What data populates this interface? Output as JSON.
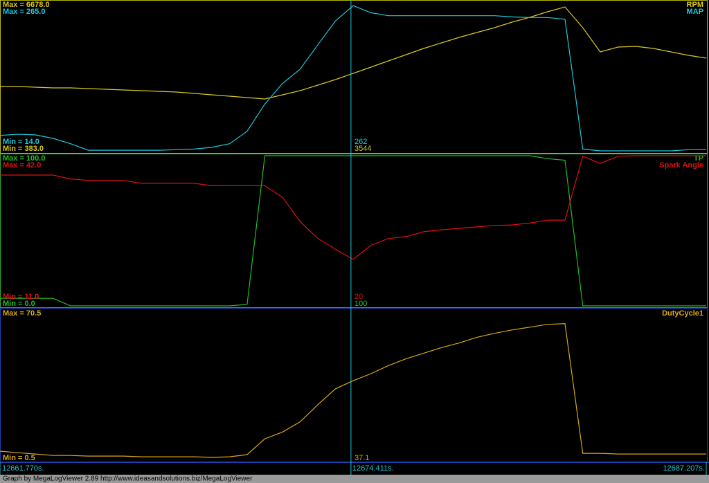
{
  "chart_data": [
    {
      "type": "line",
      "xlim": [
        12661.77,
        12687.207
      ],
      "x": [
        12661.77,
        12662.41,
        12663.04,
        12663.68,
        12664.31,
        12664.95,
        12665.59,
        12666.22,
        12666.86,
        12667.49,
        12668.13,
        12668.77,
        12669.4,
        12670.04,
        12670.67,
        12671.31,
        12671.95,
        12672.58,
        12673.22,
        12673.85,
        12674.49,
        12675.13,
        12675.76,
        12676.4,
        12677.03,
        12677.67,
        12678.31,
        12678.94,
        12679.58,
        12680.21,
        12680.85,
        12681.49,
        12682.12,
        12682.76,
        12683.39,
        12684.03,
        12684.67,
        12685.3,
        12685.94,
        12686.57,
        12687.21
      ],
      "series": [
        {
          "name": "RPM",
          "color": "#d8c820",
          "ylim": [
            383,
            6678
          ],
          "max_label": "Max = 6678.0",
          "min_label": "Min = 383.0",
          "cursor_value": 3544,
          "values": [
            3106,
            3106,
            3077,
            3047,
            3047,
            3018,
            2989,
            2960,
            2930,
            2901,
            2872,
            2813,
            2755,
            2696,
            2638,
            2579,
            2755,
            2930,
            3165,
            3399,
            3662,
            3926,
            4189,
            4453,
            4716,
            4951,
            5185,
            5390,
            5595,
            5829,
            6034,
            6268,
            6473,
            5595,
            4570,
            4775,
            4804,
            4716,
            4570,
            4424,
            4306
          ]
        },
        {
          "name": "MAP",
          "color": "#20c8dc",
          "ylim": [
            14,
            265
          ],
          "max_label": "Max = 265.0",
          "min_label": "Min = 14.0",
          "cursor_value": 262,
          "values": [
            40,
            42,
            41,
            35,
            26,
            15,
            15,
            15,
            15,
            15,
            16,
            17,
            20,
            26,
            47,
            93,
            128,
            152,
            193,
            233,
            259,
            247,
            242,
            242,
            242,
            242,
            242,
            242,
            242,
            240,
            239,
            239,
            236,
            17,
            14,
            14,
            14,
            14,
            14,
            16,
            16
          ]
        }
      ]
    },
    {
      "type": "line",
      "xlim": [
        12661.77,
        12687.207
      ],
      "x": [
        12661.77,
        12662.41,
        12663.04,
        12663.68,
        12664.31,
        12664.95,
        12665.59,
        12666.22,
        12666.86,
        12667.49,
        12668.13,
        12668.77,
        12669.4,
        12670.04,
        12670.67,
        12671.31,
        12671.95,
        12672.58,
        12673.22,
        12673.85,
        12674.49,
        12675.13,
        12675.76,
        12676.4,
        12677.03,
        12677.67,
        12678.31,
        12678.94,
        12679.58,
        12680.21,
        12680.85,
        12681.49,
        12682.12,
        12682.76,
        12683.39,
        12684.03,
        12684.67,
        12685.3,
        12685.94,
        12686.57,
        12687.21
      ],
      "series": [
        {
          "name": "TP",
          "color": "#20c020",
          "ylim": [
            0,
            100
          ],
          "max_label": "Max = 100.0",
          "min_label": "Min = 0.0",
          "cursor_value": 100,
          "values": [
            5,
            5,
            5,
            5,
            0,
            0,
            0,
            0,
            0,
            0,
            0,
            0,
            0,
            0,
            1,
            100,
            100,
            100,
            100,
            100,
            100,
            100,
            100,
            100,
            100,
            100,
            100,
            100,
            100,
            100,
            100,
            98,
            97,
            0,
            0,
            0,
            0,
            0,
            0,
            0,
            0
          ]
        },
        {
          "name": "Spark Angle",
          "color": "#e01010",
          "ylim": [
            11,
            42
          ],
          "max_label": "Max = 42.0",
          "min_label": "Min = 11.0",
          "cursor_value": 20,
          "values": [
            38,
            38,
            38,
            38,
            37.2,
            36.9,
            36.9,
            36.9,
            36.3,
            36.3,
            36.3,
            36.3,
            35.8,
            35.8,
            35.8,
            35.8,
            33.4,
            28.4,
            24.9,
            22.7,
            20.6,
            23.5,
            24.9,
            25.3,
            26.3,
            26.7,
            27.0,
            27.3,
            27.6,
            27.7,
            28.1,
            28.7,
            28.7,
            41.9,
            40.4,
            41.9,
            42,
            42,
            42,
            42,
            42
          ]
        }
      ]
    },
    {
      "type": "line",
      "xlim": [
        12661.77,
        12687.207
      ],
      "xticks": [
        {
          "value": 12661.77,
          "label": "12661.770s."
        },
        {
          "value": 12674.411,
          "label": "12674.411s."
        },
        {
          "value": 12687.207,
          "label": "12687.207s."
        }
      ],
      "x": [
        12661.77,
        12662.41,
        12663.04,
        12663.68,
        12664.31,
        12664.95,
        12665.59,
        12666.22,
        12666.86,
        12667.49,
        12668.13,
        12668.77,
        12669.4,
        12670.04,
        12670.67,
        12671.31,
        12671.95,
        12672.58,
        12673.22,
        12673.85,
        12674.49,
        12675.13,
        12675.76,
        12676.4,
        12677.03,
        12677.67,
        12678.31,
        12678.94,
        12679.58,
        12680.21,
        12680.85,
        12681.49,
        12682.12,
        12682.76,
        12683.39,
        12684.03,
        12684.67,
        12685.3,
        12685.94,
        12686.57,
        12687.21
      ],
      "series": [
        {
          "name": "DutyCycle1",
          "color": "#d8a818",
          "ylim": [
            0.5,
            70.5
          ],
          "max_label": "Max = 70.5",
          "min_label": "Min = 0.5",
          "cursor_value": 37.1,
          "values": [
            4.7,
            4.0,
            3.4,
            2.7,
            2.7,
            2.4,
            2.4,
            2.4,
            2.1,
            2.1,
            2.1,
            2.1,
            1.8,
            2.1,
            3.1,
            10.5,
            13.7,
            18.5,
            26.5,
            33.9,
            37.7,
            41.0,
            44.8,
            48.0,
            50.6,
            53.2,
            55.4,
            58.0,
            59.9,
            61.5,
            62.8,
            64.1,
            64.4,
            3.7,
            3.7,
            3.4,
            3.4,
            3.4,
            3.4,
            3.4,
            3.4
          ]
        }
      ]
    }
  ],
  "footer": "Graph by MegaLogViewer 2.89 http://www.ideasandsolutions.biz/MegaLogViewer"
}
